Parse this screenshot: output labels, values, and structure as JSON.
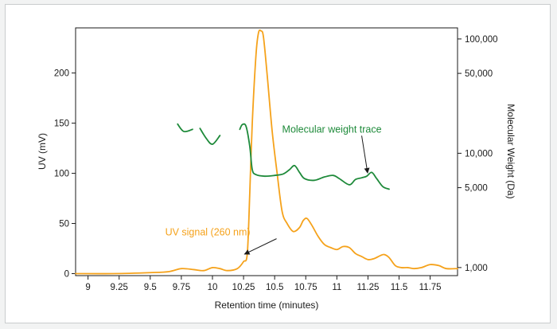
{
  "chart_data": {
    "type": "line",
    "xlabel": "Retention time (minutes)",
    "ylabel": "UV (mV)",
    "y2label": "Molecular Weight (Da)",
    "xlim": [
      8.9,
      11.97
    ],
    "ylim": [
      -2,
      245
    ],
    "y2lim": [
      850,
      125000
    ],
    "y2scale": "log",
    "x_ticks": [
      9,
      9.25,
      9.5,
      9.75,
      10,
      10.25,
      10.5,
      10.75,
      11,
      11.25,
      11.5,
      11.75
    ],
    "x_tick_labels": [
      "9",
      "9.25",
      "9.5",
      "9.75",
      "10",
      "10.25",
      "10.5",
      "10.75",
      "11",
      "11.25",
      "11.5",
      "11.75"
    ],
    "y_ticks": [
      0,
      50,
      100,
      150,
      200
    ],
    "y_tick_labels": [
      "0",
      "50",
      "100",
      "150",
      "200"
    ],
    "y2_ticks": [
      1000,
      5000,
      10000,
      50000,
      100000
    ],
    "y2_tick_labels": [
      "1,000",
      "5,000",
      "10,000",
      "50,000",
      "100,000"
    ],
    "series": [
      {
        "axis": "left",
        "color": "#f5a21b",
        "segments": [
          [
            [
              8.9,
              0
            ],
            [
              9.2,
              0
            ],
            [
              9.5,
              1
            ],
            [
              9.65,
              2
            ],
            [
              9.75,
              5
            ],
            [
              9.85,
              4
            ],
            [
              9.93,
              3
            ],
            [
              10.0,
              6
            ],
            [
              10.06,
              5
            ],
            [
              10.12,
              3
            ],
            [
              10.2,
              5
            ],
            [
              10.25,
              12
            ],
            [
              10.28,
              20
            ],
            [
              10.3,
              80
            ],
            [
              10.32,
              150
            ],
            [
              10.35,
              218
            ],
            [
              10.37,
              240
            ],
            [
              10.39,
              242
            ],
            [
              10.41,
              236
            ],
            [
              10.44,
              198
            ],
            [
              10.48,
              142
            ],
            [
              10.52,
              100
            ],
            [
              10.56,
              62
            ],
            [
              10.6,
              50
            ],
            [
              10.65,
              42
            ],
            [
              10.7,
              46
            ],
            [
              10.73,
              53
            ],
            [
              10.76,
              55
            ],
            [
              10.8,
              48
            ],
            [
              10.85,
              37
            ],
            [
              10.9,
              29
            ],
            [
              10.95,
              26
            ],
            [
              11.0,
              24
            ],
            [
              11.05,
              27
            ],
            [
              11.1,
              26
            ],
            [
              11.15,
              20
            ],
            [
              11.2,
              17
            ],
            [
              11.25,
              14
            ],
            [
              11.3,
              15
            ],
            [
              11.35,
              18
            ],
            [
              11.38,
              19
            ],
            [
              11.42,
              16
            ],
            [
              11.47,
              8
            ],
            [
              11.52,
              6
            ],
            [
              11.57,
              6
            ],
            [
              11.62,
              5
            ],
            [
              11.68,
              6
            ],
            [
              11.75,
              9
            ],
            [
              11.82,
              8
            ],
            [
              11.88,
              5
            ],
            [
              11.97,
              5
            ]
          ]
        ]
      },
      {
        "axis": "right",
        "color": "#1e8a3a",
        "segments": [
          [
            [
              9.72,
              18000
            ],
            [
              9.77,
              15500
            ],
            [
              9.84,
              16200
            ]
          ],
          [
            [
              9.9,
              16500
            ],
            [
              9.95,
              13500
            ],
            [
              10.0,
              12000
            ],
            [
              10.06,
              14300
            ]
          ],
          [
            [
              10.22,
              16200
            ],
            [
              10.24,
              17800
            ],
            [
              10.27,
              17200
            ],
            [
              10.3,
              11500
            ],
            [
              10.32,
              7200
            ],
            [
              10.35,
              6500
            ],
            [
              10.42,
              6300
            ],
            [
              10.5,
              6400
            ],
            [
              10.57,
              6600
            ],
            [
              10.62,
              7200
            ],
            [
              10.66,
              7800
            ],
            [
              10.7,
              6800
            ],
            [
              10.74,
              6000
            ],
            [
              10.82,
              5800
            ],
            [
              10.9,
              6200
            ],
            [
              10.97,
              6400
            ],
            [
              11.02,
              6000
            ],
            [
              11.1,
              5300
            ],
            [
              11.15,
              5900
            ],
            [
              11.2,
              6100
            ],
            [
              11.24,
              6300
            ],
            [
              11.28,
              6800
            ],
            [
              11.32,
              6000
            ],
            [
              11.37,
              5100
            ],
            [
              11.42,
              4850
            ]
          ]
        ]
      }
    ],
    "annotations": [
      {
        "text": "Molecular weight trace",
        "color": "#1e8a3a",
        "label_x": 10.56,
        "label_y2": 15200,
        "arrow_to_x": 11.26,
        "arrow_to_y2": 6400
      },
      {
        "text": "UV signal (260 nm)",
        "color": "#f5a21b",
        "label_x": 9.62,
        "label_y": 38,
        "arrow_to_x": 10.27,
        "arrow_to_y": 17
      }
    ],
    "grid": false,
    "legend": "none"
  }
}
